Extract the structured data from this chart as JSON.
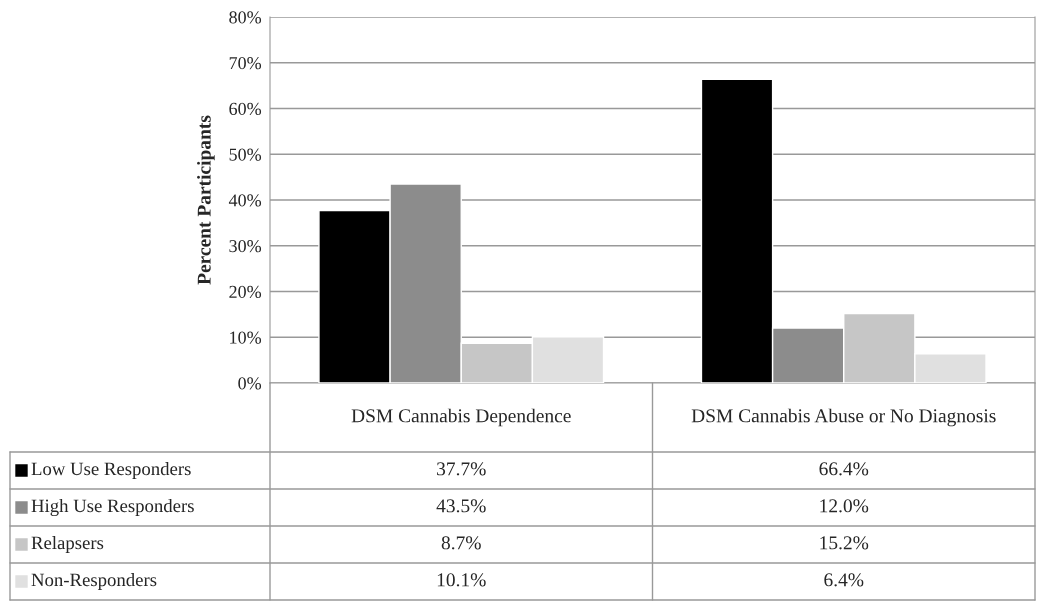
{
  "chart_data": {
    "type": "bar",
    "ylabel": "Percent Participants",
    "categories": [
      "DSM Cannabis Dependence",
      "DSM Cannabis Abuse or No Diagnosis"
    ],
    "series": [
      {
        "name": "Low Use Responders",
        "color": "#000000",
        "values": [
          37.7,
          66.4
        ],
        "value_labels": [
          "37.7%",
          "66.4%"
        ]
      },
      {
        "name": "High Use Responders",
        "color": "#8c8c8c",
        "values": [
          43.5,
          12.0
        ],
        "value_labels": [
          "43.5%",
          "12.0%"
        ]
      },
      {
        "name": "Relapsers",
        "color": "#c6c6c6",
        "values": [
          8.7,
          15.2
        ],
        "value_labels": [
          "8.7%",
          "15.2%"
        ]
      },
      {
        "name": "Non-Responders",
        "color": "#e0e0e0",
        "values": [
          10.1,
          6.4
        ],
        "value_labels": [
          "10.1%",
          "6.4%"
        ]
      }
    ],
    "ylim": [
      0,
      80
    ],
    "yticks": [
      {
        "value": 0,
        "label": "0%"
      },
      {
        "value": 10,
        "label": "10%"
      },
      {
        "value": 20,
        "label": "20%"
      },
      {
        "value": 30,
        "label": "30%"
      },
      {
        "value": 40,
        "label": "40%"
      },
      {
        "value": 50,
        "label": "50%"
      },
      {
        "value": 60,
        "label": "60%"
      },
      {
        "value": 70,
        "label": "70%"
      },
      {
        "value": 80,
        "label": "80%"
      }
    ],
    "grid": "y",
    "legend": "bottom left"
  }
}
